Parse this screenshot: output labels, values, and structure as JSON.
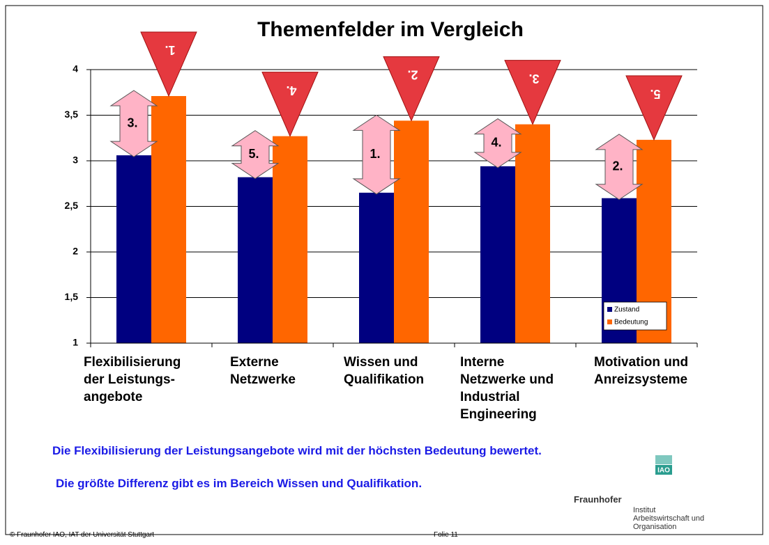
{
  "chart_data": {
    "type": "bar",
    "title": "Themenfelder im Vergleich",
    "categories": [
      "Flexibilisierung\nder Leistungs-\nangebote",
      "Externe\nNetzwerke",
      "Wissen und\nQualifikation",
      "Interne\nNetzwerke und\nIndustrial\nEngineering",
      "Motivation und\nAnreizsysteme"
    ],
    "series": [
      {
        "name": "Zustand",
        "color": "#000080",
        "values": [
          3.06,
          2.82,
          2.65,
          2.94,
          2.59
        ]
      },
      {
        "name": "Bedeutung",
        "color": "#ff6600",
        "values": [
          3.71,
          3.27,
          3.44,
          3.4,
          3.23
        ]
      }
    ],
    "difference_ranks": [
      "3.",
      "5.",
      "1.",
      "4.",
      "2."
    ],
    "importance_ranks": [
      "1.",
      "4.",
      "2.",
      "3.",
      "5."
    ],
    "ylim": [
      1,
      4
    ],
    "yticks": [
      1,
      {
        "value": 1.5,
        "label": "1,5"
      },
      2,
      {
        "value": 2.5,
        "label": "2,5"
      },
      3,
      {
        "value": 3.5,
        "label": "3,5"
      },
      4
    ],
    "grid": true,
    "legend": "lower right"
  },
  "slide": {
    "notes": [
      "Die Flexibilisierung der Leistungsangebote wird mit der höchsten Bedeutung bewertet.",
      "Die größte Differenz gibt es im Bereich Wissen und Qualifikation."
    ],
    "copyright": "© Fraunhofer IAO, IAT der Universität Stuttgart",
    "folio": "Folie 11",
    "logo": {
      "badge": "IAO",
      "brand": "Fraunhofer",
      "institute": [
        "Institut",
        "Arbeitswirtschaft und",
        "Organisation"
      ]
    }
  }
}
